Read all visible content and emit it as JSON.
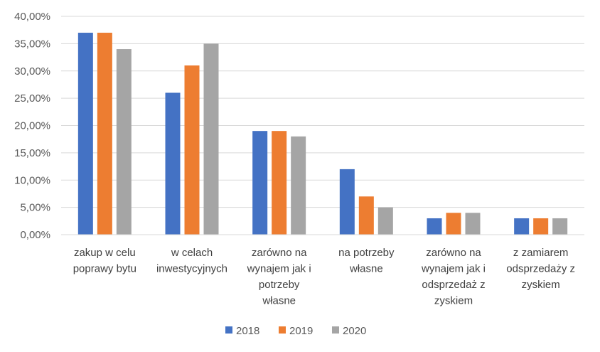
{
  "chart_data": {
    "type": "bar",
    "categories": [
      [
        "zakup w celu",
        "poprawy bytu"
      ],
      [
        "w celach",
        "inwestycyjnych"
      ],
      [
        "zarówno na",
        "wynajem jak i",
        "potrzeby",
        "własne"
      ],
      [
        "na potrzeby",
        "własne"
      ],
      [
        "zarówno na",
        "wynajem jak i",
        "odsprzedaż z",
        "zyskiem"
      ],
      [
        "z zamiarem",
        "odsprzedaży z",
        "zyskiem"
      ]
    ],
    "series": [
      {
        "name": "2018",
        "color": "#4472C4",
        "values": [
          37,
          26,
          19,
          12,
          3,
          3
        ]
      },
      {
        "name": "2019",
        "color": "#ED7D31",
        "values": [
          37,
          31,
          19,
          7,
          4,
          3
        ]
      },
      {
        "name": "2020",
        "color": "#A5A5A5",
        "values": [
          34,
          35,
          18,
          5,
          4,
          3
        ]
      }
    ],
    "ylim": [
      0,
      40
    ],
    "yticks": [
      "0,00%",
      "5,00%",
      "10,00%",
      "15,00%",
      "20,00%",
      "25,00%",
      "30,00%",
      "35,00%",
      "40,00%"
    ],
    "grid": true,
    "legend_position": "bottom"
  }
}
